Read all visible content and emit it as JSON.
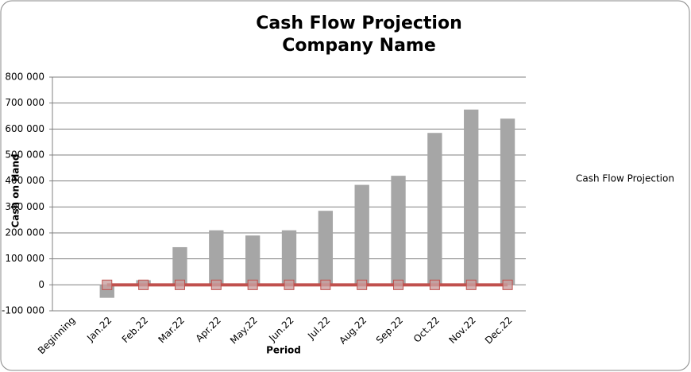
{
  "chart_data": {
    "type": "bar",
    "title": [
      "Cash Flow Projection",
      "Company Name"
    ],
    "x_label": "Period",
    "y_label": "Cash on Hand",
    "categories": [
      "Beginning",
      "Jan.22",
      "Feb.22",
      "Mar.22",
      "Apr.22",
      "May.22",
      "Jun.22",
      "Jul.22",
      "Aug.22",
      "Sep.22",
      "Oct.22",
      "Nov.22",
      "Dec.22"
    ],
    "series": [
      {
        "name": "Cash Flow Projection",
        "color": "#a6a6a6",
        "values": [
          0,
          -50000,
          18000,
          145000,
          210000,
          190000,
          210000,
          285000,
          385000,
          420000,
          585000,
          675000,
          640000
        ]
      },
      {
        "type": "line",
        "color": "#c0504d",
        "values": [
          null,
          0,
          0,
          0,
          0,
          0,
          0,
          0,
          0,
          0,
          0,
          0,
          0
        ]
      }
    ],
    "ylim": [
      -100000,
      800000
    ],
    "yticks": [
      {
        "value": -100000,
        "label": "-100 000"
      },
      0,
      {
        "value": 100000,
        "label": "100 000"
      },
      {
        "value": 200000,
        "label": "200 000"
      },
      {
        "value": 300000,
        "label": "300 000"
      },
      {
        "value": 400000,
        "label": "400 000"
      },
      {
        "value": 500000,
        "label": "500 000"
      },
      {
        "value": 600000,
        "label": "600 000"
      },
      {
        "value": 700000,
        "label": "700 000"
      },
      {
        "value": 800000,
        "label": "800 000"
      }
    ],
    "grid": true,
    "legend": "right"
  }
}
